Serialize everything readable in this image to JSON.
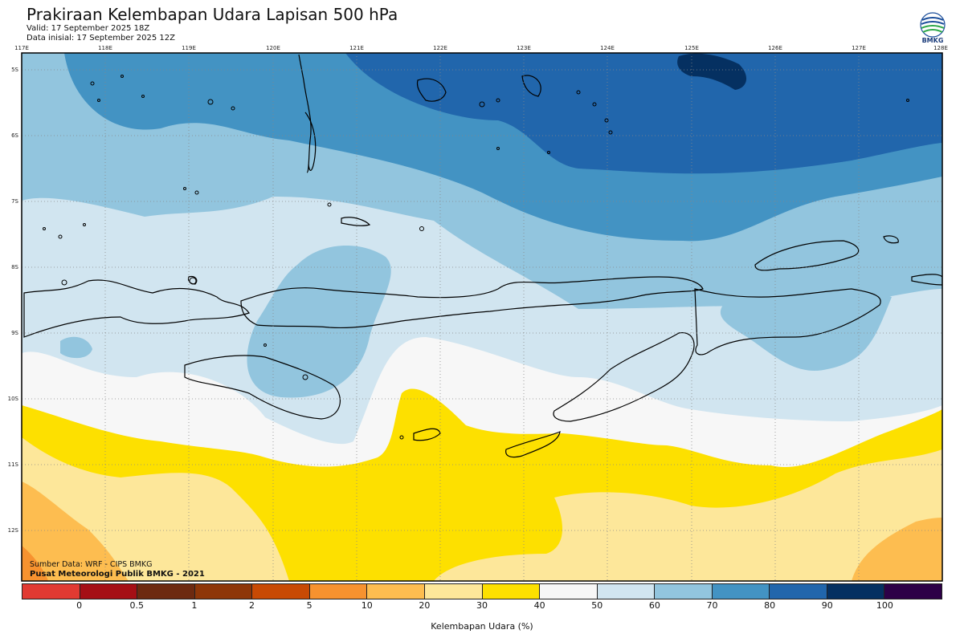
{
  "header": {
    "title": "Prakiraan Kelembapan Udara Lapisan 500 hPa",
    "valid": "Valid: 17 September 2025 18Z",
    "initial": "Data inisial: 17 September 2025 12Z"
  },
  "logo": {
    "text": "BMKG",
    "icon": "bmkg-logo"
  },
  "map": {
    "lon_labels": [
      "117E",
      "118E",
      "119E",
      "120E",
      "121E",
      "122E",
      "123E",
      "124E",
      "125E",
      "126E",
      "127E",
      "128E"
    ],
    "lat_labels": [
      "5S",
      "6S",
      "7S",
      "8S",
      "9S",
      "10S",
      "11S",
      "12S"
    ],
    "gridlines": "dotted"
  },
  "footer": {
    "source": "Sumber Data: WRF - CIPS BMKG",
    "org": "Pusat Meteorologi Publik BMKG - 2021"
  },
  "colorbar": {
    "colors": [
      "#e13a32",
      "#a50f15",
      "#6d2a10",
      "#8e3608",
      "#c84a04",
      "#f7922f",
      "#fdbd50",
      "#fde79a",
      "#fde000",
      "#f7f7f7",
      "#d1e5f0",
      "#92c5de",
      "#4393c3",
      "#2166ac",
      "#053061",
      "#2d0047"
    ],
    "ticks": [
      "0",
      "0.5",
      "1",
      "2",
      "5",
      "10",
      "20",
      "30",
      "40",
      "50",
      "60",
      "70",
      "80",
      "90",
      "100"
    ],
    "label": "Kelembapan Udara (%)"
  }
}
